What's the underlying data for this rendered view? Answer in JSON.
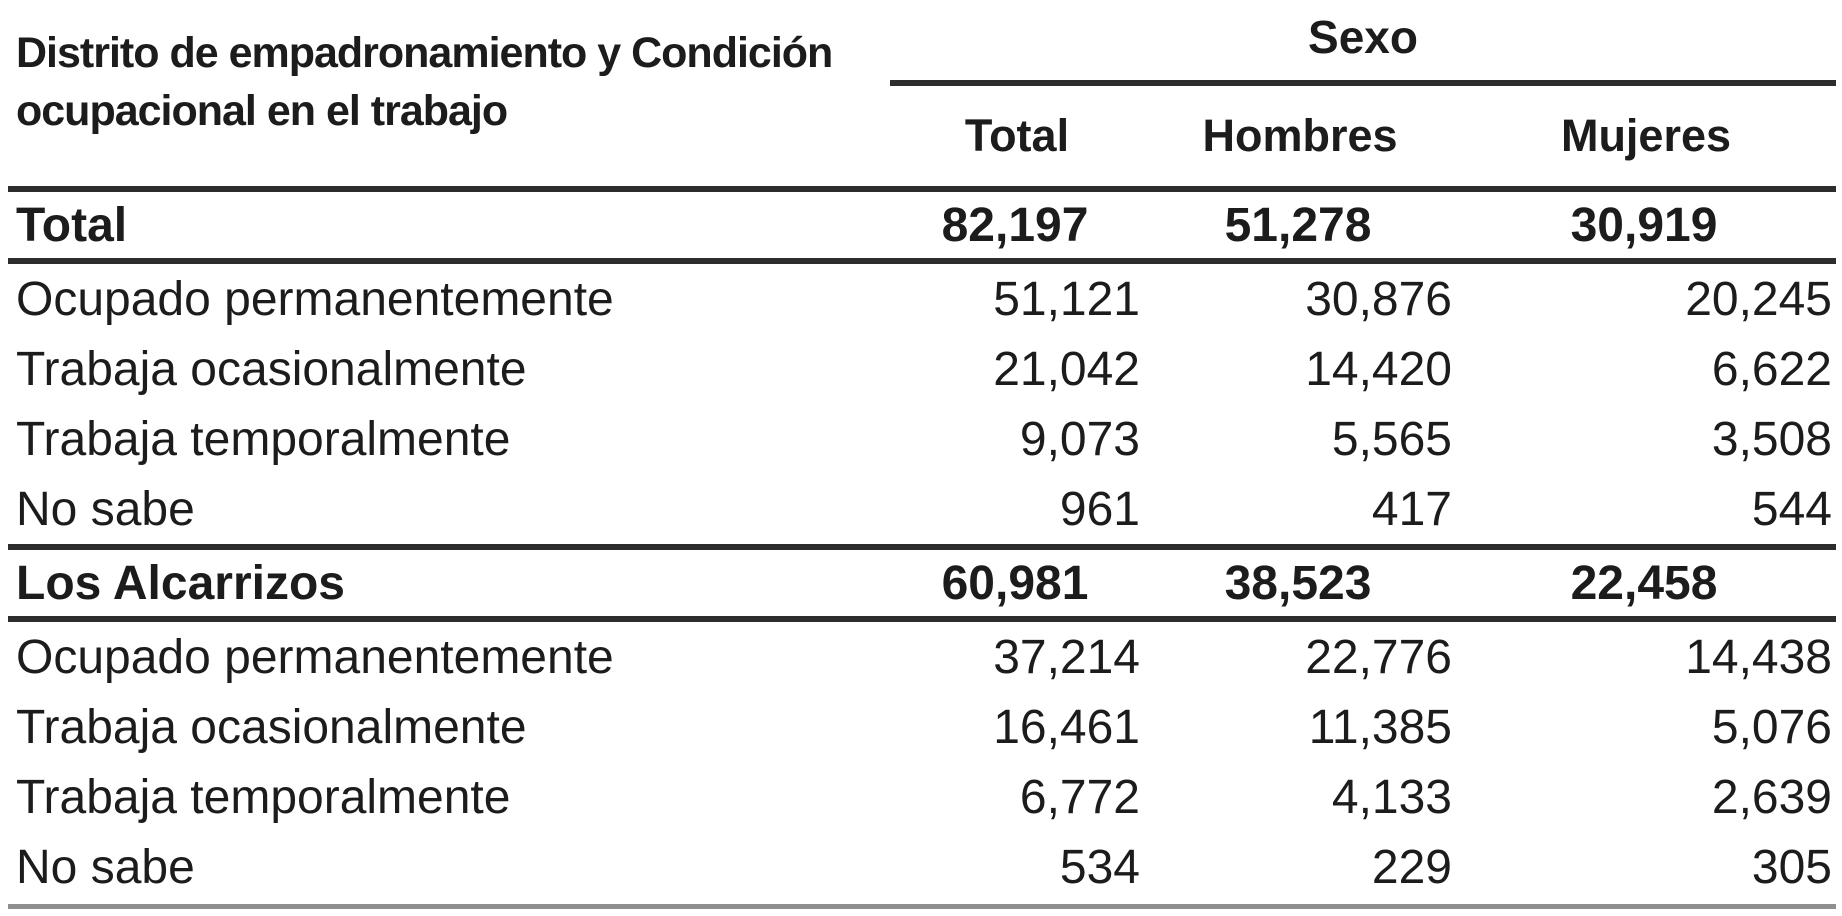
{
  "table": {
    "stub_header_line1": "Distrito de empadronamiento y Condición",
    "stub_header_line2": "ocupacional en el trabajo",
    "group_header": "Sexo",
    "columns": [
      "Total",
      "Hombres",
      "Mujeres"
    ],
    "sections": [
      {
        "label": "Total",
        "values": [
          "82,197",
          "51,278",
          "30,919"
        ],
        "rows": [
          {
            "label": "Ocupado permanentemente",
            "values": [
              "51,121",
              "30,876",
              "20,245"
            ]
          },
          {
            "label": "Trabaja ocasionalmente",
            "values": [
              "21,042",
              "14,420",
              "6,622"
            ]
          },
          {
            "label": "Trabaja temporalmente",
            "values": [
              "9,073",
              "5,565",
              "3,508"
            ]
          },
          {
            "label": "No sabe",
            "values": [
              "961",
              "417",
              "544"
            ]
          }
        ]
      },
      {
        "label": "Los Alcarrizos",
        "values": [
          "60,981",
          "38,523",
          "22,458"
        ],
        "rows": [
          {
            "label": "Ocupado permanentemente",
            "values": [
              "37,214",
              "22,776",
              "14,438"
            ]
          },
          {
            "label": "Trabaja ocasionalmente",
            "values": [
              "16,461",
              "11,385",
              "5,076"
            ]
          },
          {
            "label": "Trabaja temporalmente",
            "values": [
              "6,772",
              "4,133",
              "2,639"
            ]
          },
          {
            "label": "No sabe",
            "values": [
              "534",
              "229",
              "305"
            ]
          }
        ]
      }
    ]
  },
  "colors": {
    "text": "#1c1c1c",
    "rule_dark": "#2d2d2d",
    "rule_light": "#8f8f8f",
    "background": "#ffffff"
  },
  "chart_data": {
    "type": "table",
    "title": "Distrito de empadronamiento y Condición ocupacional en el trabajo",
    "column_group": "Sexo",
    "columns": [
      "Total",
      "Hombres",
      "Mujeres"
    ],
    "rows": [
      {
        "label": "Total",
        "bold": true,
        "values": [
          82197,
          51278,
          30919
        ]
      },
      {
        "label": "Ocupado permanentemente",
        "bold": false,
        "values": [
          51121,
          30876,
          20245
        ]
      },
      {
        "label": "Trabaja ocasionalmente",
        "bold": false,
        "values": [
          21042,
          14420,
          6622
        ]
      },
      {
        "label": "Trabaja temporalmente",
        "bold": false,
        "values": [
          9073,
          5565,
          3508
        ]
      },
      {
        "label": "No sabe",
        "bold": false,
        "values": [
          961,
          417,
          544
        ]
      },
      {
        "label": "Los Alcarrizos",
        "bold": true,
        "values": [
          60981,
          38523,
          22458
        ]
      },
      {
        "label": "Ocupado permanentemente",
        "bold": false,
        "values": [
          37214,
          22776,
          14438
        ]
      },
      {
        "label": "Trabaja ocasionalmente",
        "bold": false,
        "values": [
          16461,
          11385,
          5076
        ]
      },
      {
        "label": "Trabaja temporalmente",
        "bold": false,
        "values": [
          6772,
          4133,
          2639
        ]
      },
      {
        "label": "No sabe",
        "bold": false,
        "values": [
          534,
          229,
          305
        ]
      }
    ]
  }
}
